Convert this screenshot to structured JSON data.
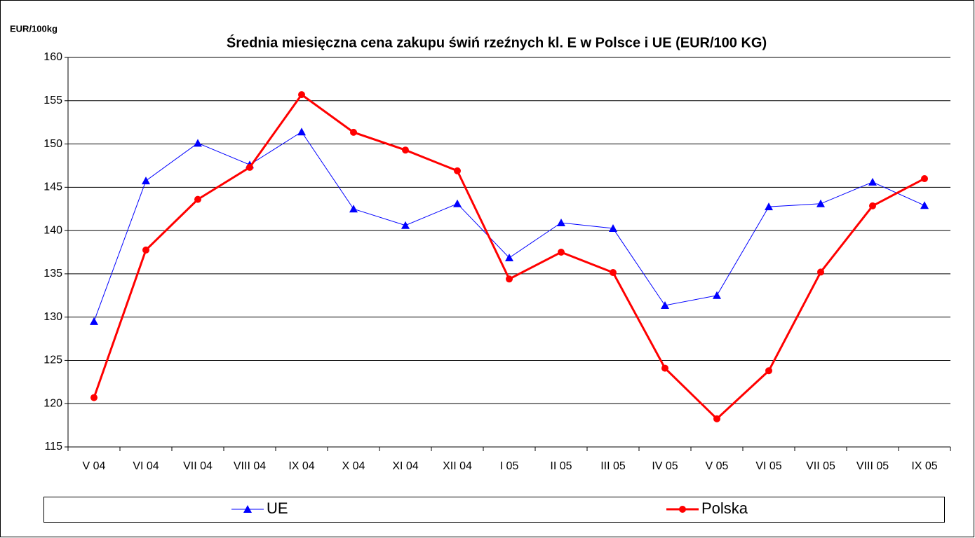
{
  "chart_data": {
    "type": "line",
    "title": "Średnia miesięczna cena zakupu świń rzeźnych kl. E w  Polsce i UE (EUR/100 KG)",
    "y_label": "EUR/100kg",
    "categories": [
      "V  04",
      "VI 04",
      "VII 04",
      "VIII 04",
      "IX 04",
      "X 04",
      "XI 04",
      "XII 04",
      "I 05",
      "II 05",
      "III 05",
      "IV 05",
      "V 05",
      "VI 05",
      "VII 05",
      "VIII 05",
      "IX 05"
    ],
    "series": [
      {
        "name": "UE",
        "color": "#0000ff",
        "marker": "triangle",
        "values": [
          129.5,
          145.75,
          150.1,
          147.6,
          151.4,
          142.5,
          140.6,
          143.1,
          136.85,
          140.9,
          140.25,
          131.35,
          132.5,
          142.75,
          143.1,
          145.6,
          142.9
        ]
      },
      {
        "name": "Polska",
        "color": "#ff0000",
        "marker": "circle",
        "values": [
          120.7,
          137.75,
          143.6,
          147.3,
          155.7,
          151.35,
          149.3,
          146.9,
          134.4,
          137.5,
          135.15,
          124.1,
          118.25,
          123.8,
          135.2,
          142.85,
          146.0
        ]
      }
    ],
    "ylim": [
      115,
      160
    ],
    "yticks": [
      115,
      120,
      125,
      130,
      135,
      140,
      145,
      150,
      155,
      160
    ],
    "grid": true,
    "legend": "bottom"
  }
}
